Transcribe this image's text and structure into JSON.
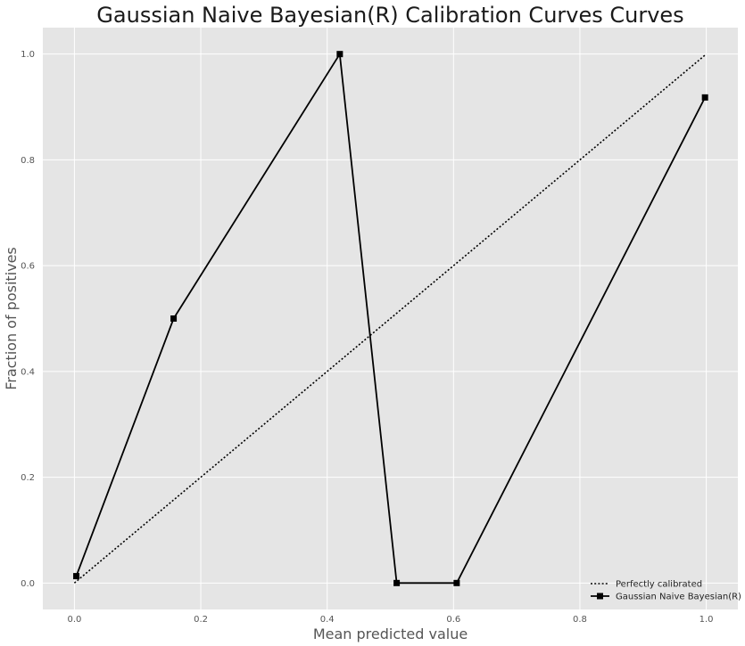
{
  "chart_data": {
    "type": "line",
    "title": "Gaussian Naive Bayesian(R) Calibration Curves Curves",
    "xlabel": "Mean predicted value",
    "ylabel": "Fraction of positives",
    "xlim": [
      -0.05,
      1.05
    ],
    "ylim": [
      -0.05,
      1.05
    ],
    "xticks": [
      0.0,
      0.2,
      0.4,
      0.6,
      0.8,
      1.0
    ],
    "yticks": [
      0.0,
      0.2,
      0.4,
      0.6,
      0.8,
      1.0
    ],
    "xtick_labels": [
      "0.0",
      "0.2",
      "0.4",
      "0.6",
      "0.8",
      "1.0"
    ],
    "ytick_labels": [
      "0.0",
      "0.2",
      "0.4",
      "0.6",
      "0.8",
      "1.0"
    ],
    "grid": true,
    "legend_position": "bottom-right",
    "series": [
      {
        "name": "Perfectly calibrated",
        "style": "dotted",
        "color": "#000000",
        "marker": "none",
        "x": [
          0.0,
          1.0
        ],
        "y": [
          0.0,
          1.0
        ]
      },
      {
        "name": "Gaussian Naive Bayesian(R)",
        "style": "solid",
        "color": "#000000",
        "marker": "square",
        "x": [
          0.003,
          0.157,
          0.42,
          0.51,
          0.605,
          0.998
        ],
        "y": [
          0.013,
          0.5,
          1.0,
          0.0,
          0.0,
          0.918
        ]
      }
    ]
  },
  "colors": {
    "plot_background": "#e5e5e5",
    "grid": "#ffffff",
    "line": "#000000"
  }
}
